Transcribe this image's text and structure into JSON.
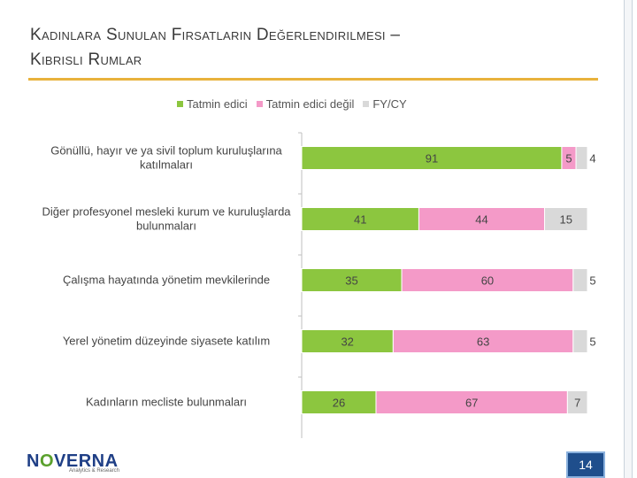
{
  "slide": {
    "title_line1": "Kadınlara Sunulan Fırsatların Değerlendirilmesi –",
    "title_line2": "Kıbrıslı Rumlar",
    "logo_text_a": "N",
    "logo_text_o": "O",
    "logo_text_b": "VERNA",
    "logo_sub": "Analytics & Research",
    "page_number": "14"
  },
  "colors": {
    "satisfied": "#8cc63f",
    "not_satisfied": "#f49ac8",
    "dk": "#d9d9d9"
  },
  "chart_data": {
    "type": "bar",
    "orientation": "horizontal",
    "stacked": true,
    "categories": [
      [
        "Gönüllü, hayır ve ya sivil toplum kuruluşlarına",
        "katılmaları"
      ],
      [
        "Diğer profesyonel mesleki kurum ve kuruluşlarda",
        "bulunmaları"
      ],
      [
        "Çalışma hayatında yönetim mevkilerinde"
      ],
      [
        "Yerel yönetim düzeyinde siyasete katılım"
      ],
      [
        "Kadınların mecliste bulunmaları"
      ]
    ],
    "series": [
      {
        "name": "Tatmin edici",
        "values": [
          91,
          41,
          35,
          32,
          26
        ]
      },
      {
        "name": "Tatmin edici değil",
        "values": [
          5,
          44,
          60,
          63,
          67
        ]
      },
      {
        "name": "FY/CY",
        "values": [
          4,
          15,
          5,
          5,
          7
        ]
      }
    ],
    "xlim": [
      0,
      100
    ],
    "legend_position": "top"
  }
}
